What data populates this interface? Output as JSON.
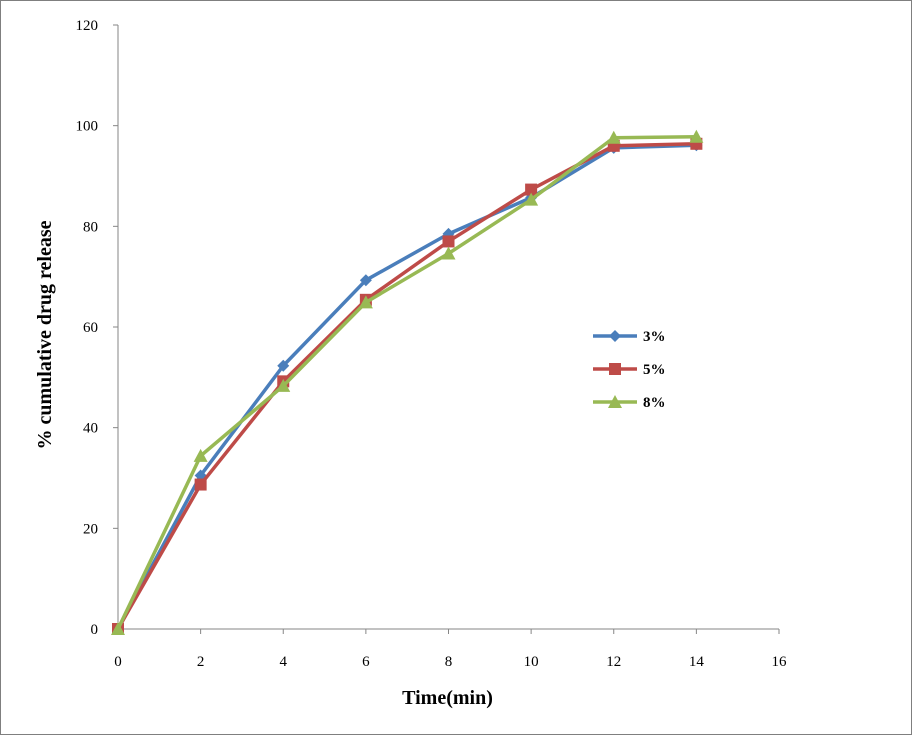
{
  "chart_data": {
    "type": "line",
    "title": "",
    "xlabel": "Time(min)",
    "ylabel": "% cumulative drug release",
    "xlim": [
      0,
      16
    ],
    "ylim": [
      0,
      120
    ],
    "xticks": [
      "0",
      "2",
      "4",
      "6",
      "8",
      "10",
      "12",
      "14",
      "16"
    ],
    "yticks": [
      "0",
      "20",
      "40",
      "60",
      "80",
      "100",
      "120"
    ],
    "grid": false,
    "legend_position": "right",
    "x": [
      0,
      2,
      4,
      6,
      8,
      10,
      12,
      14
    ],
    "series": [
      {
        "name": "3%",
        "color": "#4a7ebb",
        "marker": "diamond",
        "values": [
          0,
          30.5,
          52.3,
          69.3,
          78.5,
          85.7,
          95.6,
          96.1
        ]
      },
      {
        "name": "5%",
        "color": "#be4b48",
        "marker": "square",
        "values": [
          0,
          28.7,
          49.2,
          65.4,
          77.0,
          87.3,
          96.0,
          96.4
        ]
      },
      {
        "name": "8%",
        "color": "#98b954",
        "marker": "triangle",
        "values": [
          0,
          34.4,
          48.3,
          64.9,
          74.6,
          85.3,
          97.6,
          97.8
        ]
      }
    ]
  }
}
